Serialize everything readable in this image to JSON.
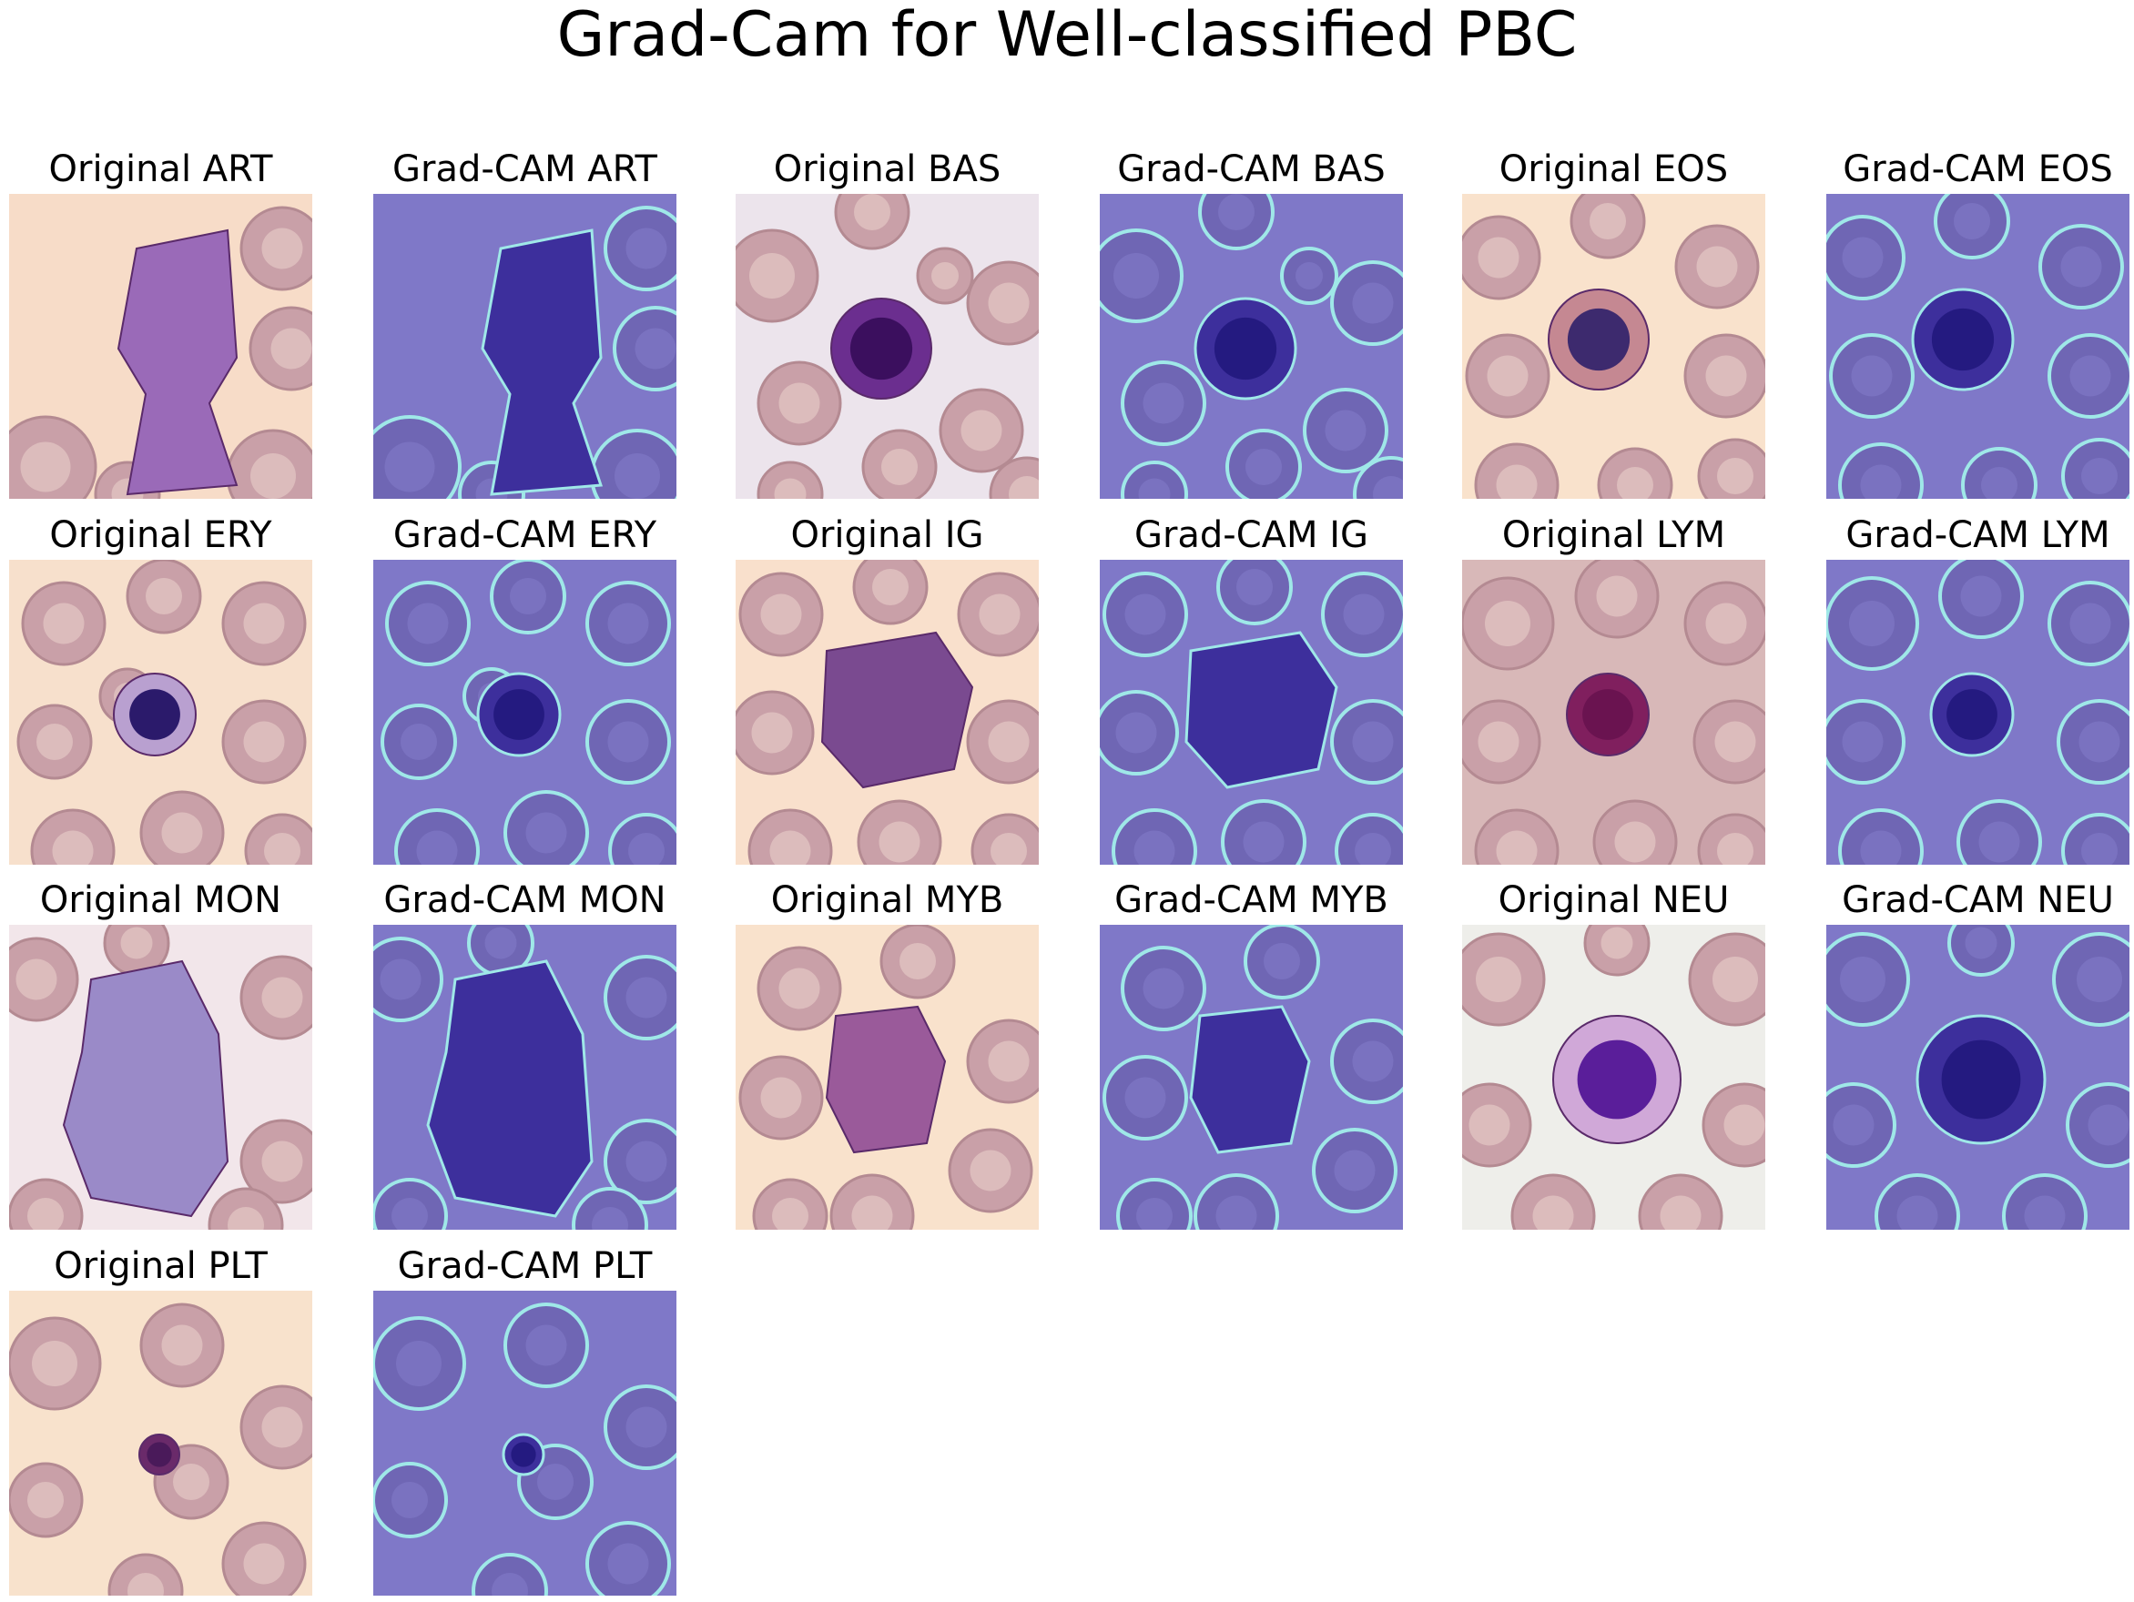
{
  "title": "Grad-Cam for Well-classified PBC",
  "panels": [
    {
      "label": "Original ART",
      "kind": "original",
      "cell": "ART"
    },
    {
      "label": "Grad-CAM ART",
      "kind": "gradcam",
      "cell": "ART"
    },
    {
      "label": "Original BAS",
      "kind": "original",
      "cell": "BAS"
    },
    {
      "label": "Grad-CAM BAS",
      "kind": "gradcam",
      "cell": "BAS"
    },
    {
      "label": "Original EOS",
      "kind": "original",
      "cell": "EOS"
    },
    {
      "label": "Grad-CAM EOS",
      "kind": "gradcam",
      "cell": "EOS"
    },
    {
      "label": "Original ERY",
      "kind": "original",
      "cell": "ERY"
    },
    {
      "label": "Grad-CAM ERY",
      "kind": "gradcam",
      "cell": "ERY"
    },
    {
      "label": "Original IG",
      "kind": "original",
      "cell": "IG"
    },
    {
      "label": "Grad-CAM IG",
      "kind": "gradcam",
      "cell": "IG"
    },
    {
      "label": "Original LYM",
      "kind": "original",
      "cell": "LYM"
    },
    {
      "label": "Grad-CAM LYM",
      "kind": "gradcam",
      "cell": "LYM"
    },
    {
      "label": "Original MON",
      "kind": "original",
      "cell": "MON"
    },
    {
      "label": "Grad-CAM MON",
      "kind": "gradcam",
      "cell": "MON"
    },
    {
      "label": "Original MYB",
      "kind": "original",
      "cell": "MYB"
    },
    {
      "label": "Grad-CAM MYB",
      "kind": "gradcam",
      "cell": "MYB"
    },
    {
      "label": "Original NEU",
      "kind": "original",
      "cell": "NEU"
    },
    {
      "label": "Grad-CAM NEU",
      "kind": "gradcam",
      "cell": "NEU"
    },
    {
      "label": "Original PLT",
      "kind": "original",
      "cell": "PLT"
    },
    {
      "label": "Grad-CAM PLT",
      "kind": "gradcam",
      "cell": "PLT"
    }
  ],
  "colors": {
    "original_background": "#f8e0cc",
    "gradcam_background": "#7f78c8",
    "red_cell": "#c9a0a8",
    "nucleus": "#4a1f7a",
    "gradcam_edge": "#9fe8e8"
  }
}
